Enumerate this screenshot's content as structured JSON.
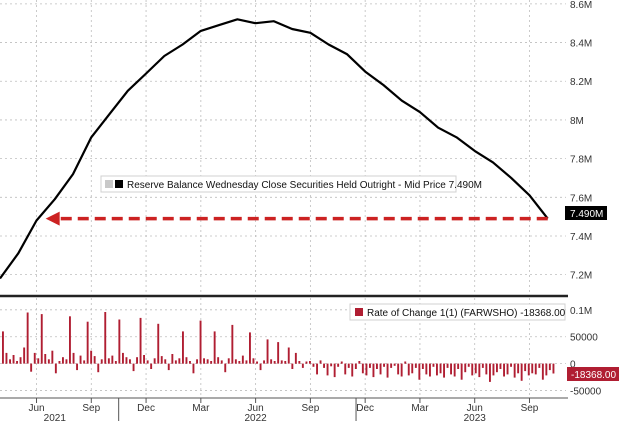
{
  "chart_data": [
    {
      "type": "line",
      "legend_label": "Reserve Balance Wednesday Close Securities Held Outright - Mid Price 7.490M",
      "last_value_tag": "7.490M",
      "y_ticks": [
        "8.6M",
        "8.4M",
        "8.2M",
        "8M",
        "7.8M",
        "7.6M",
        "7.4M",
        "7.2M"
      ],
      "y_tick_values": [
        8.6,
        8.4,
        8.2,
        8.0,
        7.8,
        7.6,
        7.4,
        7.2
      ],
      "ylim": [
        7.1,
        8.62
      ],
      "x_months_range": [
        0,
        31
      ],
      "grid": true,
      "series": [
        {
          "x": [
            0,
            1,
            2,
            3,
            4,
            5,
            6,
            7,
            8,
            9,
            10,
            11,
            12,
            13,
            14,
            15,
            16,
            17,
            18,
            19,
            20,
            21,
            22,
            23,
            24,
            25,
            26,
            27,
            28,
            29,
            30
          ],
          "y": [
            7.18,
            7.3,
            7.48,
            7.58,
            7.72,
            7.9,
            8.03,
            8.14,
            8.24,
            8.32,
            8.39,
            8.45,
            8.49,
            8.51,
            8.5,
            8.5,
            8.47,
            8.44,
            8.39,
            8.33,
            8.25,
            8.17,
            8.1,
            8.03,
            7.96,
            7.9,
            7.84,
            7.77,
            7.7,
            7.6,
            7.49
          ]
        }
      ],
      "annotation": {
        "type": "dashed-arrow",
        "color": "#cc2222",
        "from_x": 30,
        "to_x": 2.5,
        "y": 7.49
      }
    },
    {
      "type": "bar",
      "legend_label": "Rate of Change 1(1) (FARWSHO) -18368.00",
      "last_value_tag": "-18368.00",
      "y_ticks": [
        "0.1M",
        "50000",
        "0",
        "-50000"
      ],
      "y_tick_values": [
        100000,
        50000,
        0,
        -50000
      ],
      "ylim": [
        -62000,
        122000
      ],
      "grid": true,
      "values": [
        60000,
        20000,
        8000,
        16000,
        5000,
        12000,
        30000,
        95000,
        -15000,
        20000,
        10000,
        92000,
        18000,
        8000,
        24000,
        -18000,
        5000,
        12000,
        8000,
        88000,
        20000,
        -12000,
        15000,
        6000,
        78000,
        24000,
        14000,
        -16000,
        8000,
        96000,
        10000,
        15000,
        5000,
        82000,
        20000,
        12000,
        8000,
        -14000,
        12000,
        85000,
        16000,
        6000,
        -10000,
        10000,
        74000,
        14000,
        8000,
        -12000,
        18000,
        6000,
        10000,
        60000,
        12000,
        5000,
        -18000,
        8000,
        80000,
        10000,
        8000,
        5000,
        60000,
        12000,
        6000,
        -16000,
        10000,
        72000,
        8000,
        5000,
        15000,
        6000,
        58000,
        10000,
        4000,
        -12000,
        6000,
        45000,
        8000,
        5000,
        40000,
        6000,
        5000,
        30000,
        -10000,
        20000,
        5000,
        -8000,
        4000,
        5000,
        -6000,
        -20000,
        6000,
        -8000,
        -22000,
        -5000,
        -25000,
        -6000,
        4000,
        -20000,
        -8000,
        -24000,
        -10000,
        5000,
        -18000,
        -22000,
        -8000,
        -25000,
        -10000,
        -20000,
        -6000,
        -26000,
        -8000,
        -4000,
        -20000,
        -24000,
        4000,
        -22000,
        -18000,
        -8000,
        -30000,
        -10000,
        -20000,
        -24000,
        -6000,
        -22000,
        -18000,
        -26000,
        -8000,
        -20000,
        -24000,
        -10000,
        -30000,
        -16000,
        -6000,
        -22000,
        -18000,
        -25000,
        -8000,
        -20000,
        -34000,
        -22000,
        -16000,
        -10000,
        -24000,
        -20000,
        -6000,
        -26000,
        -18000,
        -32000,
        -14000,
        -22000,
        -18000,
        -20000,
        -8000,
        -30000,
        -22000,
        -12000,
        -18368
      ]
    }
  ],
  "x_axis": {
    "months": [
      "Jun",
      "Sep",
      "Dec",
      "Mar",
      "Jun",
      "Sep",
      "Dec",
      "Mar",
      "Jun",
      "Sep"
    ],
    "month_positions": [
      2,
      5,
      8,
      11,
      14,
      17,
      20,
      23,
      26,
      29
    ],
    "years": [
      "2021",
      "2022",
      "2023"
    ],
    "year_positions": [
      3,
      14,
      26
    ]
  },
  "colors": {
    "line": "#000000",
    "bars": "#b01e32",
    "arrow": "#cc2222",
    "tag_bg": "#000000",
    "tag_neg_bg": "#b01e32"
  }
}
